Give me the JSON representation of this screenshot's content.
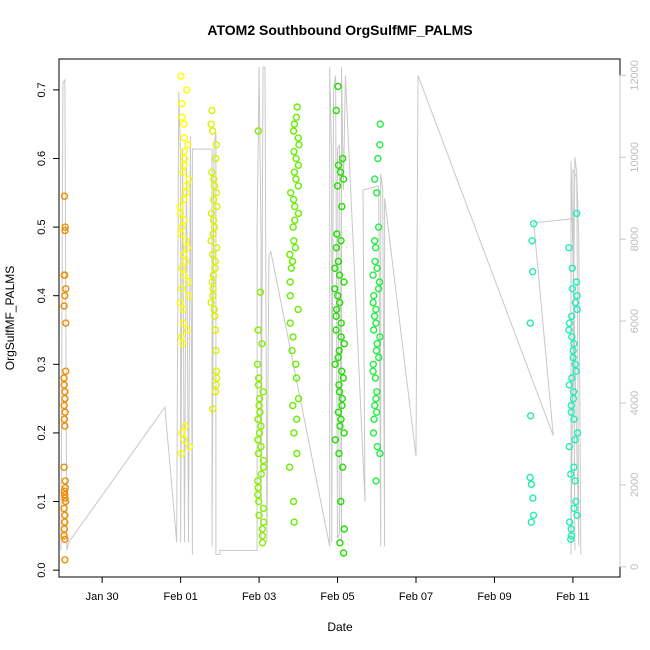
{
  "chart_data": {
    "type": "scatter",
    "title": "ATOM2 Southbound OrgSulfMF_PALMS",
    "xlabel": "Date",
    "ylabel": "OrgSulfMF_PALMS",
    "x_unit": "days since Jan 28 00:00 (x tick positions)",
    "x_ticks": [
      {
        "value": 2,
        "label": "Jan 30"
      },
      {
        "value": 4,
        "label": "Feb 01"
      },
      {
        "value": 6,
        "label": "Feb 03"
      },
      {
        "value": 8,
        "label": "Feb 05"
      },
      {
        "value": 10,
        "label": "Feb 07"
      },
      {
        "value": 12,
        "label": "Feb 09"
      },
      {
        "value": 14,
        "label": "Feb 11"
      }
    ],
    "xlim": [
      0.9,
      15.2
    ],
    "ylim": [
      -0.01,
      0.745
    ],
    "y_ticks": [
      0.0,
      0.1,
      0.2,
      0.3,
      0.4,
      0.5,
      0.6,
      0.7
    ],
    "y_tick_labels": [
      "0.0",
      "0.1",
      "0.2",
      "0.3",
      "0.4",
      "0.5",
      "0.6",
      "0.7"
    ],
    "y2_ticks": [
      0,
      2000,
      4000,
      6000,
      8000,
      10000,
      12000
    ],
    "y2_tick_labels": [
      "0",
      "2000",
      "4000",
      "6000",
      "8000",
      "10000",
      "12000"
    ],
    "y2lim": [
      -250,
      12400
    ],
    "y2_color": "#c8c8c8",
    "series": [
      {
        "color": "#f08c00",
        "x": 1.05,
        "spread": 0.05,
        "values": [
          0.015,
          0.045,
          0.05,
          0.06,
          0.07,
          0.08,
          0.09,
          0.1,
          0.105,
          0.11,
          0.115,
          0.12,
          0.13,
          0.15,
          0.21,
          0.22,
          0.23,
          0.24,
          0.25,
          0.26,
          0.27,
          0.28,
          0.29,
          0.36,
          0.385,
          0.4,
          0.41,
          0.43,
          0.43,
          0.495,
          0.5,
          0.545
        ]
      },
      {
        "color": "#ffff00",
        "x": 4.1,
        "spread": 0.25,
        "values": [
          0.17,
          0.18,
          0.19,
          0.2,
          0.21,
          0.33,
          0.34,
          0.35,
          0.36,
          0.38,
          0.39,
          0.4,
          0.41,
          0.42,
          0.43,
          0.44,
          0.45,
          0.46,
          0.47,
          0.48,
          0.49,
          0.5,
          0.51,
          0.52,
          0.53,
          0.54,
          0.55,
          0.56,
          0.57,
          0.58,
          0.59,
          0.6,
          0.61,
          0.62,
          0.63,
          0.65,
          0.66,
          0.68,
          0.7,
          0.72
        ]
      },
      {
        "color": "#ddf000",
        "x": 4.85,
        "spread": 0.15,
        "values": [
          0.235,
          0.26,
          0.27,
          0.28,
          0.29,
          0.32,
          0.35,
          0.37,
          0.38,
          0.39,
          0.4,
          0.41,
          0.42,
          0.43,
          0.44,
          0.45,
          0.46,
          0.47,
          0.48,
          0.49,
          0.5,
          0.51,
          0.52,
          0.53,
          0.54,
          0.55,
          0.56,
          0.57,
          0.58,
          0.6,
          0.62,
          0.64,
          0.65,
          0.67
        ]
      },
      {
        "color": "#88ee00",
        "x": 6.05,
        "spread": 0.18,
        "values": [
          0.04,
          0.05,
          0.06,
          0.07,
          0.08,
          0.09,
          0.1,
          0.11,
          0.12,
          0.13,
          0.14,
          0.15,
          0.16,
          0.17,
          0.18,
          0.19,
          0.2,
          0.21,
          0.22,
          0.23,
          0.24,
          0.25,
          0.26,
          0.27,
          0.28,
          0.3,
          0.33,
          0.35,
          0.405,
          0.64
        ]
      },
      {
        "color": "#66ee00",
        "x": 6.9,
        "spread": 0.25,
        "values": [
          0.07,
          0.1,
          0.15,
          0.17,
          0.2,
          0.22,
          0.24,
          0.25,
          0.28,
          0.3,
          0.32,
          0.34,
          0.36,
          0.38,
          0.4,
          0.42,
          0.44,
          0.45,
          0.46,
          0.47,
          0.48,
          0.5,
          0.51,
          0.52,
          0.53,
          0.54,
          0.55,
          0.56,
          0.57,
          0.58,
          0.59,
          0.6,
          0.61,
          0.62,
          0.63,
          0.64,
          0.65,
          0.66,
          0.675
        ]
      },
      {
        "color": "#22dd00",
        "x": 8.05,
        "spread": 0.25,
        "values": [
          0.025,
          0.04,
          0.06,
          0.1,
          0.15,
          0.17,
          0.19,
          0.2,
          0.21,
          0.22,
          0.23,
          0.24,
          0.25,
          0.26,
          0.27,
          0.28,
          0.29,
          0.3,
          0.31,
          0.32,
          0.33,
          0.34,
          0.35,
          0.36,
          0.37,
          0.38,
          0.39,
          0.4,
          0.41,
          0.42,
          0.43,
          0.44,
          0.45,
          0.47,
          0.48,
          0.49,
          0.53,
          0.56,
          0.57,
          0.58,
          0.59,
          0.6,
          0.67,
          0.705
        ]
      },
      {
        "color": "#22ee44",
        "x": 9.0,
        "spread": 0.2,
        "values": [
          0.13,
          0.17,
          0.18,
          0.2,
          0.22,
          0.23,
          0.24,
          0.25,
          0.26,
          0.28,
          0.29,
          0.3,
          0.31,
          0.32,
          0.33,
          0.34,
          0.35,
          0.36,
          0.37,
          0.38,
          0.39,
          0.4,
          0.41,
          0.42,
          0.43,
          0.44,
          0.45,
          0.47,
          0.48,
          0.5,
          0.55,
          0.57,
          0.6,
          0.62,
          0.65
        ]
      },
      {
        "color": "#22eeaa",
        "x": 12.95,
        "spread": 0.1,
        "values": [
          0.07,
          0.08,
          0.105,
          0.125,
          0.135,
          0.225,
          0.36,
          0.435,
          0.48,
          0.505
        ]
      },
      {
        "color": "#22eebb",
        "x": 14.0,
        "spread": 0.25,
        "values": [
          0.045,
          0.05,
          0.06,
          0.07,
          0.08,
          0.09,
          0.1,
          0.13,
          0.14,
          0.15,
          0.18,
          0.19,
          0.2,
          0.22,
          0.23,
          0.24,
          0.25,
          0.26,
          0.27,
          0.28,
          0.29,
          0.3,
          0.31,
          0.32,
          0.33,
          0.34,
          0.35,
          0.36,
          0.37,
          0.38,
          0.39,
          0.4,
          0.41,
          0.42,
          0.44,
          0.47,
          0.52
        ]
      }
    ],
    "altitude_trace": {
      "color": "#c8c8c8",
      "points": [
        [
          0.95,
          400
        ],
        [
          1.0,
          11800
        ],
        [
          1.05,
          11900
        ],
        [
          1.1,
          400
        ],
        [
          1.15,
          600
        ],
        [
          3.6,
          3900
        ],
        [
          3.9,
          600
        ],
        [
          3.95,
          11600
        ],
        [
          4.0,
          10000
        ],
        [
          4.0,
          600
        ],
        [
          4.05,
          10200
        ],
        [
          4.1,
          600
        ],
        [
          4.15,
          10000
        ],
        [
          4.2,
          600
        ],
        [
          4.25,
          10500
        ],
        [
          4.3,
          300
        ],
        [
          4.3,
          10200
        ],
        [
          4.8,
          10200
        ],
        [
          4.8,
          500
        ],
        [
          4.85,
          10300
        ],
        [
          4.9,
          10600
        ],
        [
          4.9,
          300
        ],
        [
          5.0,
          300
        ],
        [
          5.0,
          400
        ],
        [
          5.95,
          400
        ],
        [
          5.95,
          8200
        ],
        [
          6.0,
          12200
        ],
        [
          6.05,
          8000
        ],
        [
          6.05,
          600
        ],
        [
          6.1,
          12200
        ],
        [
          6.15,
          12200
        ],
        [
          6.2,
          600
        ],
        [
          6.25,
          7600
        ],
        [
          6.3,
          7700
        ],
        [
          7.8,
          500
        ],
        [
          7.8,
          12200
        ],
        [
          7.85,
          10000
        ],
        [
          7.85,
          600
        ],
        [
          7.9,
          11700
        ],
        [
          7.95,
          12000
        ],
        [
          8.0,
          700
        ],
        [
          8.05,
          800
        ],
        [
          8.0,
          10200
        ],
        [
          8.05,
          10300
        ],
        [
          8.1,
          600
        ],
        [
          8.1,
          12200
        ],
        [
          8.15,
          9200
        ],
        [
          8.2,
          12000
        ],
        [
          8.7,
          1600
        ],
        [
          8.65,
          9200
        ],
        [
          9.05,
          9300
        ],
        [
          9.1,
          500
        ],
        [
          9.1,
          9600
        ],
        [
          9.15,
          9200
        ],
        [
          9.2,
          500
        ],
        [
          9.2,
          9000
        ],
        [
          10.0,
          2700
        ],
        [
          10.05,
          12000
        ],
        [
          13.5,
          3200
        ],
        [
          13.0,
          8400
        ],
        [
          14.0,
          8500
        ],
        [
          14.05,
          400
        ],
        [
          14.0,
          9700
        ],
        [
          14.1,
          9500
        ],
        [
          14.15,
          500
        ],
        [
          13.95,
          9900
        ],
        [
          13.95,
          300
        ],
        [
          14.05,
          10000
        ],
        [
          14.1,
          9600
        ],
        [
          14.15,
          8000
        ],
        [
          14.2,
          300
        ]
      ]
    }
  }
}
